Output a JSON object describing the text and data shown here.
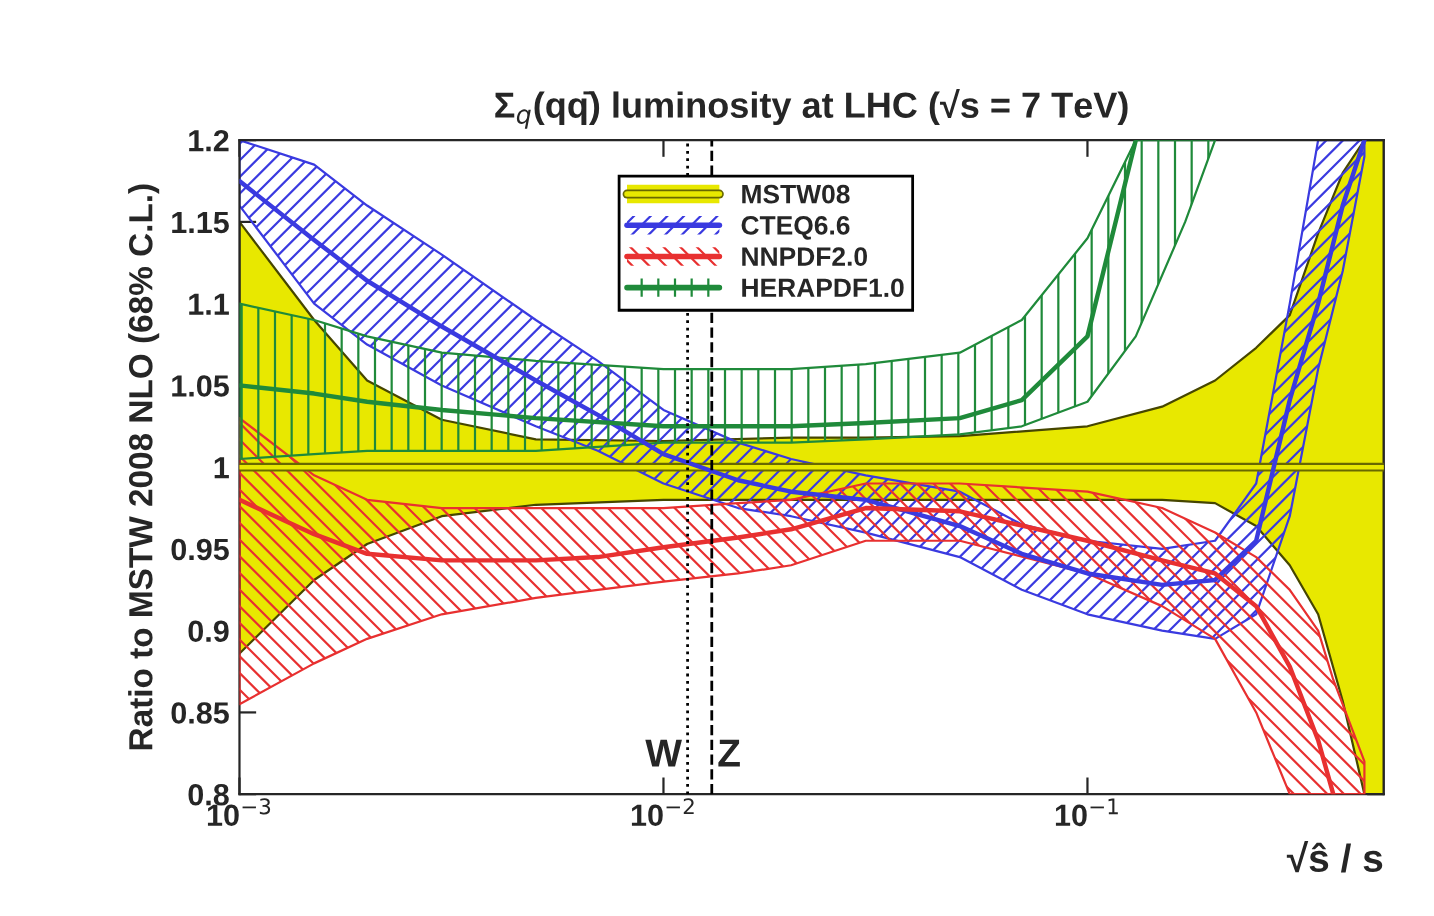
{
  "chart_data": {
    "type": "line",
    "title": "Σ$_{q}$(qq̄) luminosity at LHC (√s = 7 TeV)",
    "xlabel": "√ŝ / s",
    "ylabel": "Ratio to MSTW 2008 NLO (68% C.L.)",
    "log": "x",
    "xlim": [
      0.001,
      0.5
    ],
    "xticks": [
      {
        "value": 0.001,
        "label": "10$^{−3}$"
      },
      {
        "value": 0.01,
        "label": "10$^{−2}$"
      },
      {
        "value": 0.1,
        "label": "10$^{−1}$"
      }
    ],
    "ylim": [
      0.8,
      1.2
    ],
    "yticks": [
      0.8,
      0.85,
      0.9,
      0.95,
      1,
      1.05,
      1.1,
      1.15,
      1.2
    ],
    "grid": false,
    "legend": "top",
    "ref_lines": [
      {
        "axis": "x",
        "value": 0.0114,
        "label": "W",
        "line_style": "dotted",
        "color": "#000000"
      },
      {
        "axis": "x",
        "value": 0.013,
        "label": "Z",
        "line_style": "dashed",
        "color": "#000000"
      }
    ],
    "series": [
      {
        "name": "MSTW08",
        "color": "#e8e800",
        "x": [
          0.001,
          0.0015,
          0.002,
          0.003,
          0.005,
          0.01,
          0.02,
          0.03,
          0.05,
          0.1,
          0.15,
          0.2,
          0.25,
          0.3,
          0.35,
          0.4,
          0.45,
          0.5
        ],
        "values": [
          1,
          1,
          1,
          1,
          1,
          1,
          1,
          1,
          1,
          1,
          1,
          1,
          1,
          1,
          1,
          1,
          1,
          1
        ],
        "upper": [
          1.15,
          1.09,
          1.053,
          1.029,
          1.017,
          1.016,
          1.018,
          1.018,
          1.019,
          1.025,
          1.037,
          1.053,
          1.073,
          1.093,
          1.143,
          1.18,
          1.2,
          1.2
        ],
        "lower": [
          0.886,
          0.931,
          0.953,
          0.97,
          0.977,
          0.98,
          0.98,
          0.98,
          0.98,
          0.98,
          0.98,
          0.978,
          0.964,
          0.94,
          0.91,
          0.857,
          0.8,
          0.8
        ]
      },
      {
        "name": "CTEQ6.6",
        "color": "#3a3ae0",
        "x": [
          0.001,
          0.0015,
          0.002,
          0.003,
          0.005,
          0.007,
          0.01,
          0.015,
          0.02,
          0.03,
          0.05,
          0.07,
          0.1,
          0.15,
          0.2,
          0.25,
          0.3,
          0.35,
          0.4,
          0.45
        ],
        "values": [
          1.175,
          1.139,
          1.114,
          1.086,
          1.053,
          1.032,
          1.008,
          0.992,
          0.985,
          0.98,
          0.964,
          0.947,
          0.935,
          0.928,
          0.931,
          0.955,
          1.041,
          1.1,
          1.16,
          1.2
        ],
        "upper": [
          1.2,
          1.185,
          1.16,
          1.13,
          1.09,
          1.065,
          1.035,
          1.015,
          1.005,
          0.995,
          0.985,
          0.965,
          0.955,
          0.95,
          0.955,
          0.99,
          1.1,
          1.2,
          1.2,
          1.2
        ],
        "lower": [
          1.16,
          1.1,
          1.075,
          1.05,
          1.025,
          1.01,
          0.99,
          0.975,
          0.97,
          0.96,
          0.945,
          0.925,
          0.91,
          0.9,
          0.895,
          0.91,
          0.97,
          1.06,
          1.12,
          1.19
        ]
      },
      {
        "name": "NNPDF2.0",
        "color": "#e83030",
        "x": [
          0.001,
          0.0015,
          0.002,
          0.003,
          0.005,
          0.007,
          0.01,
          0.015,
          0.02,
          0.03,
          0.05,
          0.1,
          0.15,
          0.2,
          0.25,
          0.3,
          0.35,
          0.38,
          0.45
        ],
        "values": [
          0.98,
          0.959,
          0.947,
          0.943,
          0.943,
          0.945,
          0.951,
          0.957,
          0.962,
          0.975,
          0.973,
          0.955,
          0.943,
          0.935,
          0.915,
          0.878,
          0.833,
          0.8,
          null
        ],
        "upper": [
          1.03,
          0.995,
          0.98,
          0.975,
          0.975,
          0.975,
          0.975,
          0.978,
          0.98,
          0.99,
          0.99,
          0.985,
          0.975,
          0.96,
          0.945,
          0.925,
          0.9,
          0.87,
          0.82
        ],
        "lower": [
          0.855,
          0.88,
          0.895,
          0.91,
          0.92,
          0.925,
          0.93,
          0.935,
          0.94,
          0.955,
          0.955,
          0.935,
          0.915,
          0.895,
          0.85,
          0.8,
          0.8,
          0.8,
          0.8
        ]
      },
      {
        "name": "HERAPDF1.0",
        "color": "#1f8a3a",
        "x": [
          0.001,
          0.0015,
          0.002,
          0.003,
          0.005,
          0.01,
          0.02,
          0.03,
          0.05,
          0.07,
          0.1,
          0.13,
          0.17,
          0.2
        ],
        "values": [
          1.05,
          1.045,
          1.04,
          1.035,
          1.03,
          1.025,
          1.025,
          1.027,
          1.03,
          1.041,
          1.08,
          1.2,
          null,
          null
        ],
        "upper": [
          1.1,
          1.09,
          1.08,
          1.07,
          1.065,
          1.06,
          1.06,
          1.063,
          1.07,
          1.09,
          1.14,
          1.2,
          1.2,
          1.2
        ],
        "lower": [
          1.005,
          1.008,
          1.01,
          1.01,
          1.01,
          1.015,
          1.015,
          1.017,
          1.02,
          1.025,
          1.04,
          1.08,
          1.15,
          1.2
        ]
      }
    ]
  }
}
